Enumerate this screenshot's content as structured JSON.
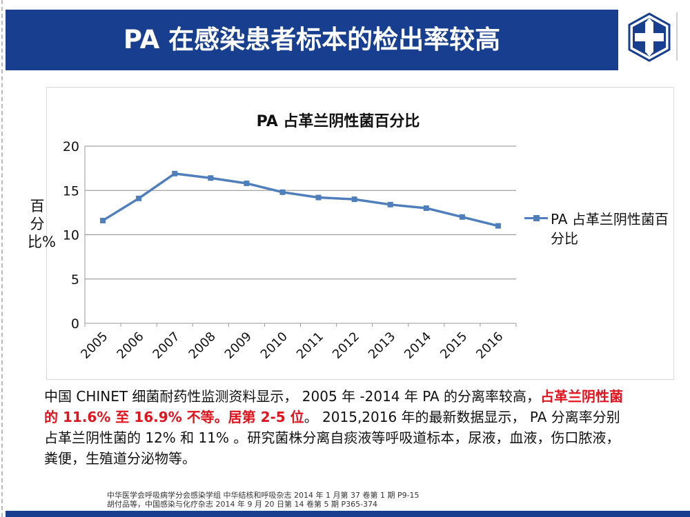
{
  "slide": {
    "title": "PA 在感染患者标本的检出率较高"
  },
  "colors": {
    "title_bar": "#173e8f",
    "series": "#4f7ebd",
    "highlight": "#e0141e"
  },
  "chart_data": {
    "type": "line",
    "title": "PA 占革兰阴性菌百分比",
    "ylabel": "百分比%",
    "xlabel": "",
    "ylim": [
      0,
      20
    ],
    "yticks": [
      0,
      5,
      10,
      15,
      20
    ],
    "grid": true,
    "legend_position": "right",
    "categories": [
      "2005",
      "2006",
      "2007",
      "2008",
      "2009",
      "2010",
      "2011",
      "2012",
      "2013",
      "2014",
      "2015",
      "2016"
    ],
    "series": [
      {
        "name": "PA 占革兰阴性菌百分比",
        "values": [
          11.6,
          14.1,
          16.9,
          16.4,
          15.8,
          14.8,
          14.2,
          14.0,
          13.4,
          13.0,
          12.0,
          11.0
        ]
      }
    ]
  },
  "body": {
    "part1": "中国 CHINET 细菌耐药性监测资料显示， 2005 年 -2014 年 PA 的分离率较高，",
    "highlight": "占革兰阴性菌的 11.6% 至 16.9% 不等。居第 2-5 位",
    "part2": "。 2015,2016 年的最新数据显示， PA 分离率分别占革兰阴性菌的 12% 和 11% 。研究菌株分离自痰液等呼吸道标本，尿液，血液，伤口脓液，粪便，生殖道分泌物等。"
  },
  "references": [
    "中华医学会呼吸病学分会感染学组 中华结核和呼吸杂志 2014 年 1 月第 37 卷第 1 期 P9-15",
    "胡付品等，中国感染与化疗杂志 2014 年 9 月 20 日第 14 卷第 5 期 P365-374"
  ]
}
